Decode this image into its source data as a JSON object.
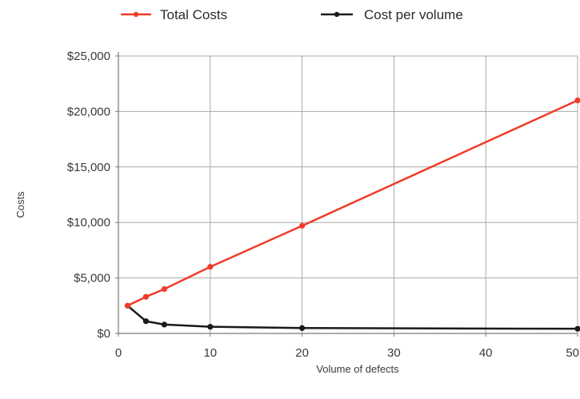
{
  "chart_data": {
    "type": "line",
    "title": "",
    "xlabel": "Volume of defects",
    "ylabel": "Costs",
    "xlim": [
      0,
      50
    ],
    "ylim": [
      0,
      25000
    ],
    "x_ticks": [
      0,
      10,
      20,
      30,
      40,
      50
    ],
    "x_tick_labels": [
      "0",
      "10",
      "20",
      "30",
      "40",
      "50"
    ],
    "y_ticks": [
      0,
      5000,
      10000,
      15000,
      20000,
      25000
    ],
    "y_tick_labels": [
      "$0",
      "$5,000",
      "$10,000",
      "$15,000",
      "$20,000",
      "$25,000"
    ],
    "grid": "vertical-and-horizontal",
    "legend_position": "top",
    "series": [
      {
        "name": "Total Costs",
        "color": "#f03c28",
        "points": [
          {
            "x": 1,
            "y": 2500
          },
          {
            "x": 3,
            "y": 3300
          },
          {
            "x": 5,
            "y": 4000
          },
          {
            "x": 10,
            "y": 6000
          },
          {
            "x": 20,
            "y": 9700
          },
          {
            "x": 50,
            "y": 21000
          }
        ]
      },
      {
        "name": "Cost per volume",
        "color": "#1a1a1a",
        "points": [
          {
            "x": 1,
            "y": 2500
          },
          {
            "x": 3,
            "y": 1100
          },
          {
            "x": 5,
            "y": 800
          },
          {
            "x": 10,
            "y": 600
          },
          {
            "x": 20,
            "y": 485
          },
          {
            "x": 50,
            "y": 420
          }
        ]
      }
    ]
  }
}
